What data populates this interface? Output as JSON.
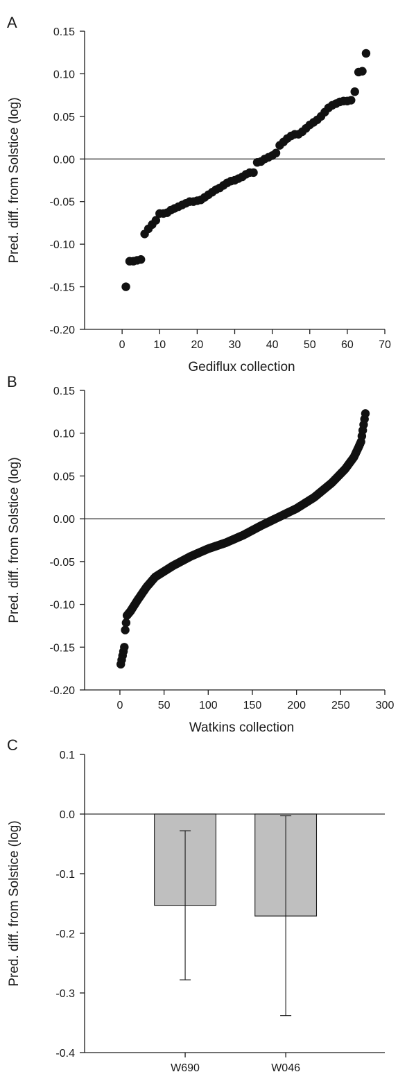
{
  "chart_data": [
    {
      "panel": "A",
      "type": "scatter",
      "title": "",
      "xlabel": "Gediflux collection",
      "ylabel": "Pred. diff. from Solstice (log)",
      "xlim": [
        -10,
        70
      ],
      "ylim": [
        -0.2,
        0.15
      ],
      "xticks": [
        0,
        10,
        20,
        30,
        40,
        50,
        60,
        70
      ],
      "yticks": [
        -0.2,
        -0.15,
        -0.1,
        -0.05,
        0.0,
        0.05,
        0.1,
        0.15
      ],
      "xtick_labels": [
        "0",
        "10",
        "20",
        "30",
        "40",
        "50",
        "60",
        "70"
      ],
      "ytick_labels": [
        "-0.20",
        "-0.15",
        "-0.10",
        "-0.05",
        "0.00",
        "0.05",
        "0.10",
        "0.15"
      ],
      "reference_line_y": 0,
      "point_color": "#111111",
      "series": [
        {
          "x": [
            1,
            2,
            3,
            4,
            5,
            6,
            7,
            8,
            9,
            10,
            11,
            12,
            13,
            14,
            15,
            16,
            17,
            18,
            19,
            20,
            21,
            22,
            23,
            24,
            25,
            26,
            27,
            28,
            29,
            30,
            31,
            32,
            33,
            34,
            35,
            36,
            37,
            38,
            39,
            40,
            41,
            42,
            43,
            44,
            45,
            46,
            47,
            48,
            49,
            50,
            51,
            52,
            53,
            54,
            55,
            56,
            57,
            58,
            59,
            60,
            61,
            62,
            63,
            64,
            65
          ],
          "y": [
            -0.15,
            -0.12,
            -0.12,
            -0.119,
            -0.118,
            -0.088,
            -0.082,
            -0.077,
            -0.072,
            -0.064,
            -0.064,
            -0.063,
            -0.06,
            -0.058,
            -0.056,
            -0.054,
            -0.052,
            -0.05,
            -0.05,
            -0.049,
            -0.048,
            -0.045,
            -0.042,
            -0.039,
            -0.036,
            -0.034,
            -0.031,
            -0.028,
            -0.026,
            -0.025,
            -0.023,
            -0.021,
            -0.018,
            -0.016,
            -0.016,
            -0.004,
            -0.003,
            0.0,
            0.002,
            0.004,
            0.007,
            0.016,
            0.02,
            0.024,
            0.027,
            0.029,
            0.029,
            0.032,
            0.036,
            0.04,
            0.043,
            0.046,
            0.05,
            0.055,
            0.06,
            0.063,
            0.065,
            0.067,
            0.068,
            0.068,
            0.069,
            0.079,
            0.102,
            0.103,
            0.124
          ]
        }
      ]
    },
    {
      "panel": "B",
      "type": "scatter",
      "title": "",
      "xlabel": "Watkins collection",
      "ylabel": "Pred. diff. from Solstice (log)",
      "xlim": [
        -40,
        300
      ],
      "ylim": [
        -0.2,
        0.15
      ],
      "xticks": [
        0,
        50,
        100,
        150,
        200,
        250,
        300
      ],
      "yticks": [
        -0.2,
        -0.15,
        -0.1,
        -0.05,
        0.0,
        0.05,
        0.1,
        0.15
      ],
      "xtick_labels": [
        "0",
        "50",
        "100",
        "150",
        "200",
        "250",
        "300"
      ],
      "ytick_labels": [
        "-0.20",
        "-0.15",
        "-0.10",
        "-0.05",
        "0.00",
        "0.05",
        "0.10",
        "0.15"
      ],
      "reference_line_y": 0,
      "point_color": "#111111",
      "n_points": 278,
      "series": [
        {
          "x_anchors": [
            1,
            3,
            5,
            6,
            8,
            12,
            20,
            30,
            40,
            60,
            80,
            100,
            120,
            140,
            160,
            180,
            200,
            220,
            240,
            255,
            265,
            270,
            273,
            276,
            278
          ],
          "y_anchors": [
            -0.17,
            -0.16,
            -0.15,
            -0.13,
            -0.113,
            -0.108,
            -0.095,
            -0.08,
            -0.068,
            -0.055,
            -0.044,
            -0.035,
            -0.028,
            -0.019,
            -0.008,
            0.002,
            0.012,
            0.025,
            0.042,
            0.058,
            0.072,
            0.083,
            0.09,
            0.11,
            0.123
          ]
        }
      ]
    },
    {
      "panel": "C",
      "type": "bar",
      "title": "",
      "xlabel": "",
      "ylabel": "Pred. diff. from Solstice (log)",
      "categories": [
        "W690",
        "W046"
      ],
      "values": [
        -0.153,
        -0.171
      ],
      "error_lower": [
        -0.278,
        -0.338
      ],
      "error_upper": [
        -0.028,
        -0.003
      ],
      "ylim": [
        -0.4,
        0.1
      ],
      "yticks": [
        -0.4,
        -0.3,
        -0.2,
        -0.1,
        0.0,
        0.1
      ],
      "ytick_labels": [
        "-0.4",
        "-0.3",
        "-0.2",
        "-0.1",
        "0.0",
        "0.1"
      ],
      "reference_line_y": 0,
      "bar_color": "#bfbfbf"
    }
  ]
}
